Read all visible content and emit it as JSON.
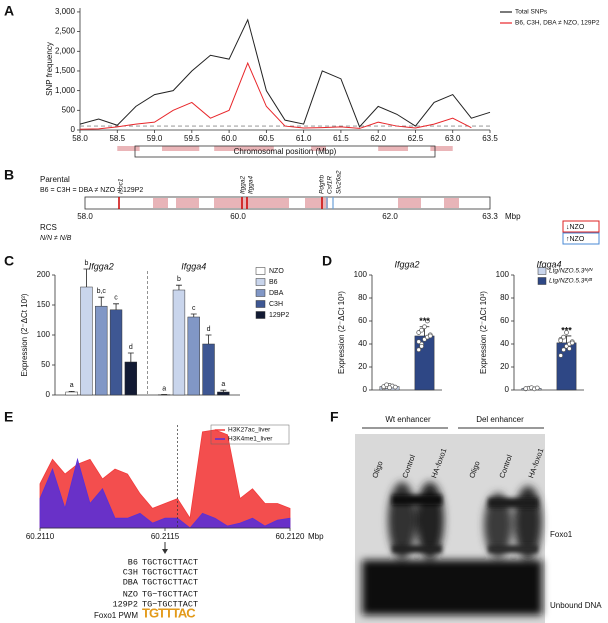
{
  "panel_labels": [
    "A",
    "B",
    "C",
    "D",
    "E",
    "F"
  ],
  "chart_data": [
    {
      "type": "line",
      "ylabel": "SNP frequency",
      "xlabel": "Chromosomal position (Mbp)",
      "x": [
        58,
        58.25,
        58.5,
        58.75,
        59,
        59.25,
        59.5,
        59.75,
        60,
        60.25,
        60.5,
        60.75,
        61,
        61.25,
        61.5,
        61.75,
        62,
        62.25,
        62.5,
        62.75,
        63,
        63.25,
        63.5
      ],
      "series": [
        {
          "name": "Total SNPs",
          "color": "#222222",
          "values": [
            150,
            280,
            120,
            600,
            900,
            1000,
            1500,
            1900,
            1800,
            2800,
            1000,
            250,
            150,
            1500,
            1300,
            80,
            600,
            400,
            100,
            700,
            900,
            300,
            450
          ]
        },
        {
          "name": "B6, C3H, DBA ≠ NZO, 129P2",
          "color": "#e8262a",
          "values": [
            20,
            30,
            80,
            150,
            200,
            500,
            700,
            300,
            500,
            1700,
            600,
            100,
            50,
            60,
            80,
            40,
            200,
            100,
            50,
            150,
            300,
            60,
            null
          ]
        }
      ],
      "xlim": [
        58,
        63.5
      ],
      "ylim": [
        0,
        3100
      ],
      "xticks": [
        {
          "value": 58,
          "label": "58.0"
        },
        58.5,
        {
          "value": 59,
          "label": "59.0"
        },
        59.5,
        {
          "value": 60,
          "label": "60.0"
        },
        60.5,
        {
          "value": 61,
          "label": "61.0"
        },
        61.5,
        {
          "value": 62,
          "label": "62.0"
        },
        62.5,
        {
          "value": 63,
          "label": "63.0"
        },
        63.5
      ],
      "yticks": [
        0,
        500,
        {
          "value": 1000,
          "label": "1,000"
        },
        {
          "value": 1500,
          "label": "1,500"
        },
        {
          "value": 2000,
          "label": "2,000"
        },
        {
          "value": 2500,
          "label": "2,500"
        },
        {
          "value": 3000,
          "label": "3,000"
        }
      ],
      "hline": 100,
      "highlight_regions": [
        [
          58.5,
          58.8
        ],
        [
          59.1,
          59.6
        ],
        [
          59.8,
          60.6
        ],
        [
          61.1,
          61.3
        ],
        [
          62.0,
          62.4
        ],
        [
          62.7,
          63.0
        ]
      ],
      "legend": "upper right"
    },
    {
      "type": "bar",
      "ylabel": "Expression (2⁻ΔCt 10³)",
      "categories": [
        "Ifgga2",
        "Ifgga4"
      ],
      "series": [
        {
          "name": "NZO",
          "color": "#ffffff",
          "values": [
            5,
            0.5
          ],
          "errors": [
            1,
            0.3
          ],
          "annotations": [
            "a",
            "a"
          ]
        },
        {
          "name": "B6",
          "color": "#c9d5ec",
          "values": [
            180,
            175
          ],
          "errors": [
            30,
            8
          ],
          "annotations": [
            "b",
            "b"
          ]
        },
        {
          "name": "DBA",
          "color": "#8197c6",
          "values": [
            148,
            130
          ],
          "errors": [
            15,
            5
          ],
          "annotations": [
            "b,c",
            "c"
          ]
        },
        {
          "name": "C3H",
          "color": "#3e5793",
          "values": [
            142,
            85
          ],
          "errors": [
            10,
            15
          ],
          "annotations": [
            "c",
            "d"
          ]
        },
        {
          "name": "129P2",
          "color": "#121a33",
          "values": [
            55,
            5
          ],
          "errors": [
            15,
            3
          ],
          "annotations": [
            "d",
            "a"
          ]
        }
      ],
      "ylim": [
        0,
        200
      ],
      "yticks": [
        0,
        50,
        100,
        150,
        200
      ],
      "divider": true,
      "legend": "upper right"
    },
    {
      "type": "bar",
      "title": "Ifgga2",
      "ylabel": "Expression (2⁻ΔCt 10³)",
      "categories": [
        null,
        null
      ],
      "colors": [
        "#c9d5ec",
        "#2e4785"
      ],
      "values": [
        3,
        47
      ],
      "errors": [
        1,
        8
      ],
      "points": [
        [
          2,
          3,
          4,
          3.5,
          2.5,
          3,
          4.5,
          2
        ],
        [
          35,
          40,
          44,
          46,
          48,
          50,
          52,
          55,
          60,
          47,
          42,
          38
        ]
      ],
      "annotations": [
        null,
        "***"
      ],
      "ylim": [
        0,
        100
      ],
      "yticks": [
        0,
        20,
        40,
        60,
        80,
        100
      ]
    },
    {
      "type": "bar",
      "title": "Ifgga4",
      "ylabel": "Expression (2⁻ΔCt 10³)",
      "categories": [
        "Ltg/NZO.5.3ᴺ/ᴺ",
        "Ltg/NZO.5.3ᴮ/ᴮ"
      ],
      "colors": [
        "#c9d5ec",
        "#2e4785"
      ],
      "values": [
        1.5,
        41
      ],
      "errors": [
        0.5,
        6
      ],
      "points": [
        [
          1,
          1.5,
          2,
          1,
          1.8,
          1.2
        ],
        [
          30,
          35,
          38,
          40,
          42,
          44,
          46,
          50,
          36,
          41,
          43
        ]
      ],
      "annotations": [
        null,
        "***"
      ],
      "ylim": [
        0,
        100
      ],
      "yticks": [
        0,
        20,
        40,
        60,
        80,
        100
      ],
      "legend": "upper right"
    },
    {
      "type": "area",
      "x": [
        60.211,
        60.21105,
        60.2111,
        60.21115,
        60.2112,
        60.21125,
        60.2113,
        60.21135,
        60.2114,
        60.21145,
        60.2115,
        60.21155,
        60.2116,
        60.21165,
        60.2117,
        60.21175,
        60.2118,
        60.21185,
        60.2119,
        60.21195,
        60.212
      ],
      "series": [
        {
          "name": "H3K27ac_liver",
          "color": "#f23b3b",
          "values": [
            45,
            70,
            55,
            65,
            70,
            50,
            60,
            55,
            35,
            20,
            25,
            30,
            10,
            98,
            100,
            95,
            30,
            40,
            25,
            25,
            20
          ]
        },
        {
          "name": "H3K4me1_liver",
          "color": "#5a2fd6",
          "values": [
            30,
            60,
            20,
            70,
            25,
            40,
            10,
            10,
            15,
            5,
            10,
            10,
            0,
            15,
            10,
            2,
            5,
            10,
            2,
            8,
            10
          ]
        }
      ],
      "xlim": [
        60.211,
        60.212
      ],
      "ylim": [
        0,
        105
      ],
      "xticks": [
        {
          "value": 60.211,
          "label": "60.2110"
        },
        60.2115,
        {
          "value": 60.212,
          "label": "60.2120"
        }
      ],
      "x_unit": "Mbp",
      "marker_x": 60.21155,
      "legend": "upper right"
    }
  ],
  "panel_b": {
    "parental_label": "Parental",
    "parental_relation": "B6 = C3H = DBA ≠ NZO = 129P2",
    "genes": [
      "Isoc1",
      "Ifgga2",
      "Ifgga4",
      "Pdgfrb",
      "Csf1R",
      "Slc26a2"
    ],
    "scale": [
      "58.0",
      "60.0",
      "62.0",
      "63.3"
    ],
    "unit": "Mbp",
    "rcs_label": "RCS",
    "rcs_relation": "N/N ≠ N/B",
    "legend": [
      "↓NZO",
      "↑NZO"
    ]
  },
  "panel_e_alignment": {
    "rows": [
      {
        "strain": "B6",
        "sequence": "TGCTGCTTACT"
      },
      {
        "strain": "C3H",
        "sequence": "TGCTGCTTACT"
      },
      {
        "strain": "DBA",
        "sequence": "TGCTGCTTACT"
      },
      {
        "strain": "NZO",
        "sequence": "TG−TGCTTACT"
      },
      {
        "strain": "129P2",
        "sequence": "TG−TGCTTACT"
      }
    ],
    "pwm_label": "Foxo1 PWM",
    "pwm_logo": "TGTTTAC"
  },
  "panel_f": {
    "groups": [
      "Wt enhancer",
      "Del enhancer"
    ],
    "lanes": [
      "Oligo",
      "Control",
      "HA-foxo1",
      "Oligo",
      "Control",
      "HA-foxo1"
    ],
    "bands": [
      "Foxo1",
      "Unbound DNA"
    ]
  }
}
